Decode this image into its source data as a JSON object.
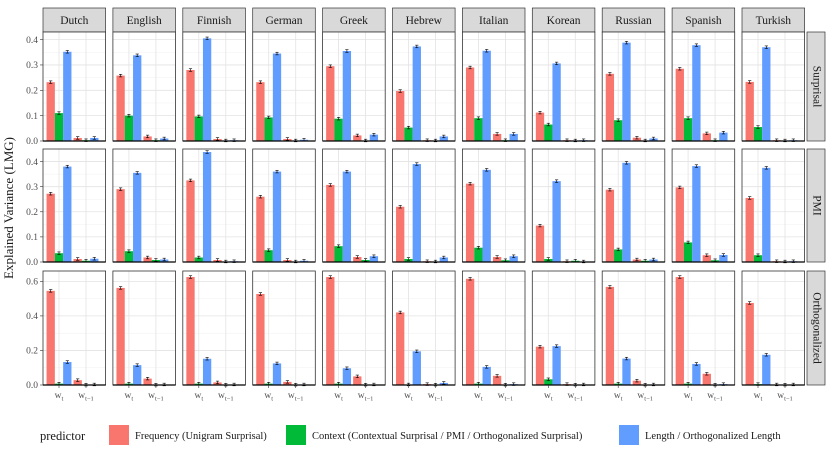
{
  "chart_data": {
    "type": "bar",
    "facet_type": "grid",
    "ylabel": "Explained Variance (LMG)",
    "columns": [
      "Dutch",
      "English",
      "Finnish",
      "German",
      "Greek",
      "Hebrew",
      "Italian",
      "Korean",
      "Russian",
      "Spanish",
      "Turkish"
    ],
    "rows": [
      {
        "name": "Surprisal",
        "ylim": [
          0,
          0.43
        ],
        "yticks": [
          0.0,
          0.1,
          0.2,
          0.3,
          0.4
        ],
        "ytick_labels": [
          "0.0",
          "0.1",
          "0.2",
          "0.3",
          "0.4"
        ]
      },
      {
        "name": "PMI",
        "ylim": [
          0,
          0.45
        ],
        "yticks": [
          0.0,
          0.1,
          0.2,
          0.3,
          0.4
        ],
        "ytick_labels": [
          "0.0",
          "0.1",
          "0.2",
          "0.3",
          "0.4"
        ]
      },
      {
        "name": "Orthogonalized",
        "ylim": [
          0,
          0.66
        ],
        "yticks": [
          0.0,
          0.2,
          0.4,
          0.6
        ],
        "ytick_labels": [
          "0.0",
          "0.2",
          "0.4",
          "0.6"
        ]
      }
    ],
    "x_categories": [
      "w_t",
      "w_t-1"
    ],
    "x_tick_labels": [
      {
        "base": "w",
        "sub": "t"
      },
      {
        "base": "w",
        "sub": "t−1"
      }
    ],
    "legend": {
      "title": "predictor",
      "position": "bottom",
      "entries": [
        {
          "name": "Frequency (Unigram Surprisal)",
          "color": "#F8766D"
        },
        {
          "name": "Context (Contextual Surprisal / PMI / Orthogonalized Surprisal)",
          "color": "#00BA38"
        },
        {
          "name": "Length / Orthogonalized Length",
          "color": "#619CFF"
        }
      ]
    },
    "value_order": "values[row][column] = [[freq_wt, ctx_wt, len_wt], [freq_wt-1, ctx_wt-1, len_wt-1]]",
    "values": {
      "Surprisal": {
        "Dutch": [
          [
            0.232,
            0.11,
            0.352
          ],
          [
            0.012,
            0.003,
            0.012
          ]
        ],
        "English": [
          [
            0.258,
            0.1,
            0.338
          ],
          [
            0.018,
            0.003,
            0.01
          ]
        ],
        "Finnish": [
          [
            0.28,
            0.097,
            0.405
          ],
          [
            0.008,
            0.002,
            0.003
          ]
        ],
        "German": [
          [
            0.232,
            0.093,
            0.345
          ],
          [
            0.008,
            0.002,
            0.005
          ]
        ],
        "Greek": [
          [
            0.295,
            0.088,
            0.355
          ],
          [
            0.022,
            0.002,
            0.025
          ]
        ],
        "Hebrew": [
          [
            0.197,
            0.053,
            0.373
          ],
          [
            0.003,
            0.002,
            0.018
          ]
        ],
        "Italian": [
          [
            0.29,
            0.09,
            0.356
          ],
          [
            0.028,
            0.003,
            0.028
          ]
        ],
        "Korean": [
          [
            0.112,
            0.065,
            0.306
          ],
          [
            0.003,
            0.002,
            0.003
          ]
        ],
        "Russian": [
          [
            0.265,
            0.082,
            0.388
          ],
          [
            0.013,
            0.002,
            0.01
          ]
        ],
        "Spanish": [
          [
            0.285,
            0.09,
            0.378
          ],
          [
            0.03,
            0.003,
            0.033
          ]
        ],
        "Turkish": [
          [
            0.233,
            0.055,
            0.37
          ],
          [
            0.003,
            0.002,
            0.003
          ]
        ]
      },
      "PMI": {
        "Dutch": [
          [
            0.272,
            0.035,
            0.38
          ],
          [
            0.012,
            0.005,
            0.013
          ]
        ],
        "English": [
          [
            0.29,
            0.043,
            0.355
          ],
          [
            0.018,
            0.008,
            0.01
          ]
        ],
        "Finnish": [
          [
            0.325,
            0.018,
            0.438
          ],
          [
            0.008,
            0.002,
            0.003
          ]
        ],
        "German": [
          [
            0.26,
            0.047,
            0.36
          ],
          [
            0.008,
            0.002,
            0.005
          ]
        ],
        "Greek": [
          [
            0.307,
            0.063,
            0.36
          ],
          [
            0.02,
            0.008,
            0.023
          ]
        ],
        "Hebrew": [
          [
            0.22,
            0.012,
            0.39
          ],
          [
            0.003,
            0.002,
            0.018
          ]
        ],
        "Italian": [
          [
            0.312,
            0.057,
            0.367
          ],
          [
            0.02,
            0.007,
            0.023
          ]
        ],
        "Korean": [
          [
            0.145,
            0.012,
            0.322
          ],
          [
            0.003,
            0.005,
            0.002
          ]
        ],
        "Russian": [
          [
            0.288,
            0.05,
            0.395
          ],
          [
            0.01,
            0.005,
            0.01
          ]
        ],
        "Spanish": [
          [
            0.297,
            0.078,
            0.382
          ],
          [
            0.027,
            0.007,
            0.028
          ]
        ],
        "Turkish": [
          [
            0.255,
            0.027,
            0.375
          ],
          [
            0.003,
            0.002,
            0.003
          ]
        ]
      },
      "Orthogonalized": {
        "Dutch": [
          [
            0.545,
            0.008,
            0.133
          ],
          [
            0.028,
            0.002,
            0.003
          ]
        ],
        "English": [
          [
            0.562,
            0.008,
            0.115
          ],
          [
            0.037,
            0.002,
            0.003
          ]
        ],
        "Finnish": [
          [
            0.625,
            0.008,
            0.152
          ],
          [
            0.015,
            0.002,
            0.003
          ]
        ],
        "German": [
          [
            0.527,
            0.008,
            0.125
          ],
          [
            0.018,
            0.002,
            0.003
          ]
        ],
        "Greek": [
          [
            0.625,
            0.008,
            0.097
          ],
          [
            0.05,
            0.002,
            0.003
          ]
        ],
        "Hebrew": [
          [
            0.42,
            0.003,
            0.195
          ],
          [
            0.005,
            0.002,
            0.012
          ]
        ],
        "Italian": [
          [
            0.615,
            0.008,
            0.105
          ],
          [
            0.053,
            0.002,
            0.005
          ]
        ],
        "Korean": [
          [
            0.222,
            0.033,
            0.225
          ],
          [
            0.005,
            0.002,
            0.003
          ]
        ],
        "Russian": [
          [
            0.568,
            0.008,
            0.153
          ],
          [
            0.025,
            0.002,
            0.003
          ]
        ],
        "Spanish": [
          [
            0.625,
            0.008,
            0.122
          ],
          [
            0.065,
            0.002,
            0.005
          ]
        ],
        "Turkish": [
          [
            0.475,
            0.005,
            0.175
          ],
          [
            0.003,
            0.002,
            0.003
          ]
        ]
      }
    }
  }
}
